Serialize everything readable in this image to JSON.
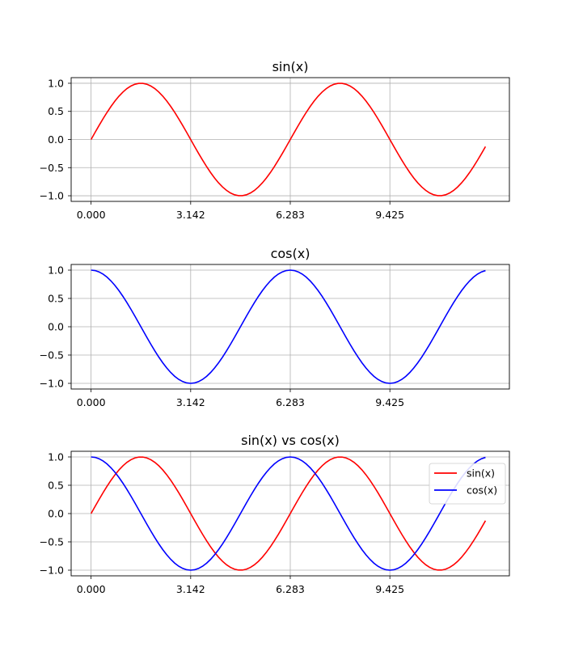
{
  "chart_data": [
    {
      "type": "line",
      "title": "sin(x)",
      "xlabel": "",
      "ylabel": "",
      "xlim": [
        -0.6283,
        13.1947
      ],
      "ylim": [
        -1.1,
        1.1
      ],
      "xticks": [
        0,
        3.1416,
        6.2832,
        9.4248
      ],
      "xtick_labels": [
        "0.000",
        "3.142",
        "6.283",
        "9.425"
      ],
      "yticks": [
        1.0,
        0.5,
        0.0,
        -0.5,
        -1.0
      ],
      "ytick_labels": [
        "1.0",
        "0.5",
        "0.0",
        "−0.5",
        "−1.0"
      ],
      "grid": true,
      "legend": null,
      "series": [
        {
          "function": "sin",
          "color": "#ff0000",
          "x_start": 0,
          "x_end": 12.566,
          "samples": 100
        }
      ]
    },
    {
      "type": "line",
      "title": "cos(x)",
      "xlabel": "",
      "ylabel": "",
      "xlim": [
        -0.6283,
        13.1947
      ],
      "ylim": [
        -1.1,
        1.1
      ],
      "xticks": [
        0,
        3.1416,
        6.2832,
        9.4248
      ],
      "xtick_labels": [
        "0.000",
        "3.142",
        "6.283",
        "9.425"
      ],
      "yticks": [
        1.0,
        0.5,
        0.0,
        -0.5,
        -1.0
      ],
      "ytick_labels": [
        "1.0",
        "0.5",
        "0.0",
        "−0.5",
        "−1.0"
      ],
      "grid": true,
      "legend": null,
      "series": [
        {
          "function": "cos",
          "color": "#0000ff",
          "x_start": 0,
          "x_end": 12.566,
          "samples": 100
        }
      ]
    },
    {
      "type": "line",
      "title": "sin(x) vs cos(x)",
      "xlabel": "",
      "ylabel": "",
      "xlim": [
        -0.6283,
        13.1947
      ],
      "ylim": [
        -1.1,
        1.1
      ],
      "xticks": [
        0,
        3.1416,
        6.2832,
        9.4248
      ],
      "xtick_labels": [
        "0.000",
        "3.142",
        "6.283",
        "9.425"
      ],
      "yticks": [
        1.0,
        0.5,
        0.0,
        -0.5,
        -1.0
      ],
      "ytick_labels": [
        "1.0",
        "0.5",
        "0.0",
        "−0.5",
        "−1.0"
      ],
      "grid": true,
      "legend": "upper right",
      "series": [
        {
          "name": "sin(x)",
          "function": "sin",
          "color": "#ff0000",
          "x_start": 0,
          "x_end": 12.566,
          "samples": 100
        },
        {
          "name": "cos(x)",
          "function": "cos",
          "color": "#0000ff",
          "x_start": 0,
          "x_end": 12.566,
          "samples": 100
        }
      ]
    }
  ]
}
